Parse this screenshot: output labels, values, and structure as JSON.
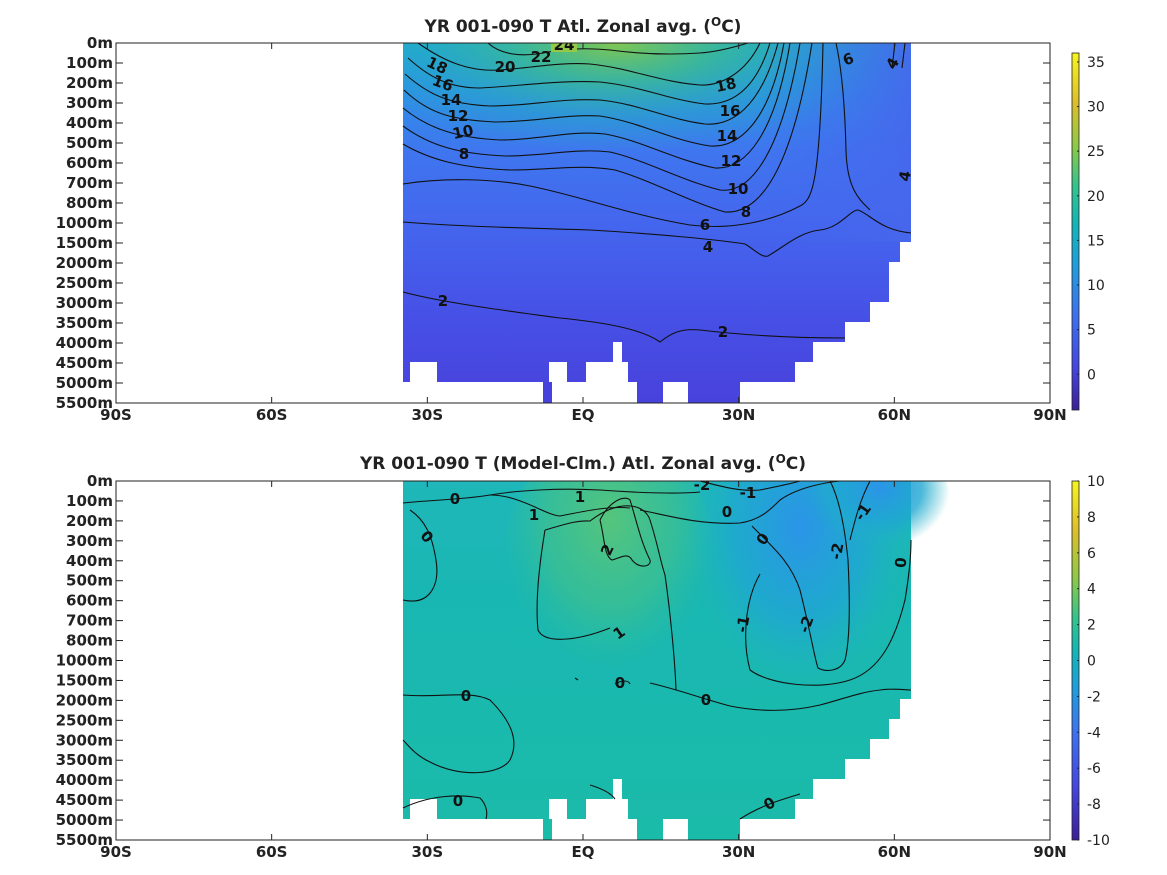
{
  "chart_data": [
    {
      "type": "heatmap",
      "title": "YR 001-090 T Atl. Zonal avg. (",
      "title_sup": "O",
      "title_suffix": "C)",
      "x_ticks": [
        "90S",
        "60S",
        "30S",
        "EQ",
        "30N",
        "60N",
        "90N"
      ],
      "y_ticks": [
        "0m",
        "100m",
        "200m",
        "300m",
        "400m",
        "500m",
        "600m",
        "700m",
        "800m",
        "1000m",
        "1500m",
        "2000m",
        "2500m",
        "3000m",
        "3500m",
        "4000m",
        "4500m",
        "5000m",
        "5500m"
      ],
      "colorbar": {
        "range": [
          -4,
          36
        ],
        "ticks": [
          "0",
          "5",
          "10",
          "15",
          "20",
          "25",
          "30",
          "35"
        ]
      },
      "contour_labels": [
        {
          "text": "24",
          "lat": -4,
          "depth": 0.3
        },
        {
          "text": "22",
          "lat": -9,
          "depth": 0.6
        },
        {
          "text": "20",
          "lat": -15,
          "depth": 1.1
        },
        {
          "text": "18",
          "lat": -28,
          "depth": 1.1
        },
        {
          "text": "16",
          "lat": -27,
          "depth": 2.0
        },
        {
          "text": "14",
          "lat": -26,
          "depth": 2.9
        },
        {
          "text": "12",
          "lat": -24,
          "depth": 3.7
        },
        {
          "text": "10",
          "lat": -23,
          "depth": 4.4
        },
        {
          "text": "8",
          "lat": -23,
          "depth": 5.5
        },
        {
          "text": "18",
          "lat": 28,
          "depth": 2.0
        },
        {
          "text": "16",
          "lat": 28,
          "depth": 3.4
        },
        {
          "text": "14",
          "lat": 28,
          "depth": 4.6
        },
        {
          "text": "12",
          "lat": 28,
          "depth": 5.9
        },
        {
          "text": "10",
          "lat": 30,
          "depth": 7.3
        },
        {
          "text": "8",
          "lat": 31,
          "depth": 8.5
        },
        {
          "text": "6",
          "lat": 23,
          "depth": 9.1
        },
        {
          "text": "4",
          "lat": 23,
          "depth": 10.3
        },
        {
          "text": "6",
          "lat": 51,
          "depth": 0.8
        },
        {
          "text": "4",
          "lat": 60,
          "depth": 1.0
        },
        {
          "text": "4",
          "lat": 63,
          "depth": 6.6
        },
        {
          "text": "2",
          "lat": -27,
          "depth": 12.9
        },
        {
          "text": "2",
          "lat": 26,
          "depth": 14.5
        }
      ]
    },
    {
      "type": "heatmap",
      "title": "YR 001-090 T (Model-Clm.) Atl. Zonal avg. (",
      "title_sup": "O",
      "title_suffix": "C)",
      "x_ticks": [
        "90S",
        "60S",
        "30S",
        "EQ",
        "30N",
        "60N",
        "90N"
      ],
      "y_ticks": [
        "0m",
        "100m",
        "200m",
        "300m",
        "400m",
        "500m",
        "600m",
        "700m",
        "800m",
        "1000m",
        "1500m",
        "2000m",
        "2500m",
        "3000m",
        "3500m",
        "4000m",
        "4500m",
        "5000m",
        "5500m"
      ],
      "colorbar": {
        "range": [
          -10,
          10
        ],
        "ticks": [
          "-10",
          "-8",
          "-6",
          "-4",
          "-2",
          "0",
          "2",
          "4",
          "6",
          "8",
          "10"
        ]
      },
      "contour_labels": [
        {
          "text": "0",
          "lat": -24,
          "depth": 0.9
        },
        {
          "text": "1",
          "lat": -10,
          "depth": 1.0
        },
        {
          "text": "1",
          "lat": -10,
          "depth": 1.8
        },
        {
          "text": "-2",
          "lat": 22,
          "depth": 0.2
        },
        {
          "text": "-1",
          "lat": 31,
          "depth": 0.5
        },
        {
          "text": "0",
          "lat": 27,
          "depth": 1.5
        },
        {
          "text": "-1",
          "lat": 54,
          "depth": 1.6
        },
        {
          "text": "0",
          "lat": -32,
          "depth": 2.7
        },
        {
          "text": "2",
          "lat": 4,
          "depth": 3.4
        },
        {
          "text": "0",
          "lat": 35,
          "depth": 2.9
        },
        {
          "text": "-2",
          "lat": 48,
          "depth": 3.3
        },
        {
          "text": "0",
          "lat": 61,
          "depth": 4.0
        },
        {
          "text": "1",
          "lat": 7,
          "depth": 7.5
        },
        {
          "text": "-1",
          "lat": 31,
          "depth": 7.4
        },
        {
          "text": "-2",
          "lat": 43,
          "depth": 7.5
        },
        {
          "text": "0",
          "lat": 7,
          "depth": 9.7
        },
        {
          "text": "0",
          "lat": -23,
          "depth": 10.7
        },
        {
          "text": "0",
          "lat": 23,
          "depth": 10.9
        },
        {
          "text": "0",
          "lat": -24,
          "depth": 15.9
        },
        {
          "text": "0",
          "lat": 35,
          "depth": 16.0
        }
      ]
    }
  ]
}
